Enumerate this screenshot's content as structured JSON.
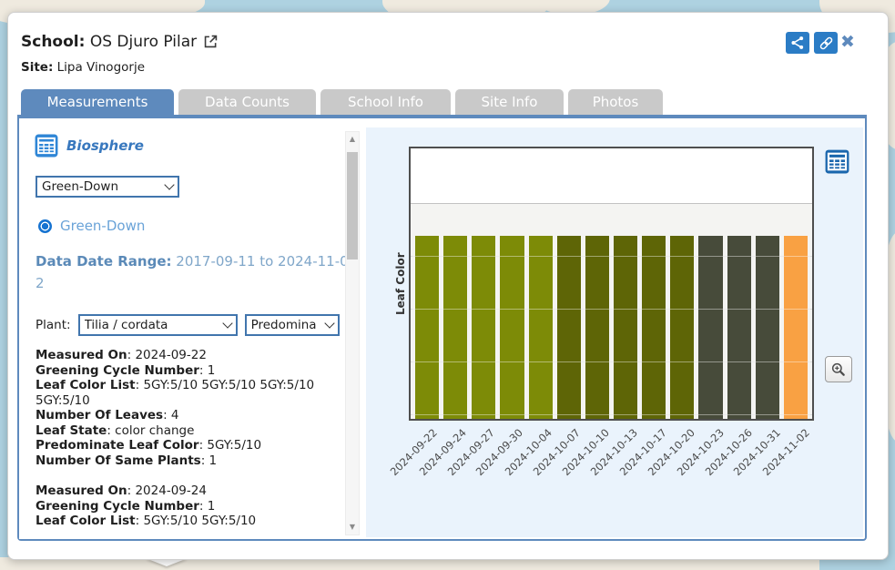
{
  "header": {
    "school_label": "School:",
    "school_name": "OS Djuro Pilar",
    "site_label": "Site:",
    "site_name": "Lipa Vinogorje"
  },
  "tabs": [
    {
      "label": "Measurements",
      "active": true
    },
    {
      "label": "Data Counts",
      "active": false
    },
    {
      "label": "School Info",
      "active": false
    },
    {
      "label": "Site Info",
      "active": false
    },
    {
      "label": "Photos",
      "active": false
    }
  ],
  "sidebar": {
    "section_title": "Biosphere",
    "protocol_select": {
      "value": "Green-Down"
    },
    "radio": {
      "label": "Green-Down",
      "selected": true
    },
    "date_range_label": "Data Date Range:",
    "date_range_value": "2017-09-11 to 2024-11-02",
    "plant_label": "Plant:",
    "plant_select": {
      "value": "Tilia / cordata"
    },
    "attribute_select": {
      "value": "Predomina"
    },
    "measurements": [
      {
        "fields": [
          {
            "label": "Measured On",
            "value": "2024-09-22"
          },
          {
            "label": "Greening Cycle Number",
            "value": "1"
          },
          {
            "label": "Leaf Color List",
            "value": "5GY:5/10 5GY:5/10 5GY:5/10 5GY:5/10"
          },
          {
            "label": "Number Of Leaves",
            "value": "4"
          },
          {
            "label": "Leaf State",
            "value": "color change"
          },
          {
            "label": "Predominate Leaf Color",
            "value": "5GY:5/10"
          },
          {
            "label": "Number Of Same Plants",
            "value": "1"
          }
        ]
      },
      {
        "fields": [
          {
            "label": "Measured On",
            "value": "2024-09-24"
          },
          {
            "label": "Greening Cycle Number",
            "value": "1"
          },
          {
            "label": "Leaf Color List",
            "value": "5GY:5/10 5GY:5/10"
          }
        ]
      }
    ]
  },
  "chart_data": {
    "type": "bar",
    "title": "",
    "xlabel": "",
    "ylabel": "Leaf Color",
    "categories": [
      "2024-09-22",
      "2024-09-24",
      "2024-09-27",
      "2024-09-30",
      "2024-10-04",
      "2024-10-07",
      "2024-10-10",
      "2024-10-13",
      "2024-10-17",
      "2024-10-20",
      "2024-10-23",
      "2024-10-26",
      "2024-10-31",
      "2024-11-02"
    ],
    "values": [
      1,
      1,
      1,
      1,
      1,
      1,
      1,
      1,
      1,
      1,
      1,
      1,
      1,
      1
    ],
    "bar_colors": [
      "#7d8b07",
      "#7d8b07",
      "#7d8b07",
      "#7d8b07",
      "#7d8b07",
      "#5e6506",
      "#5e6506",
      "#5e6506",
      "#5e6506",
      "#5e6506",
      "#474b3a",
      "#474b3a",
      "#474b3a",
      "#f9a143"
    ],
    "ylim": [
      0,
      1
    ],
    "grid": true,
    "legend": "none"
  },
  "colors": {
    "accent_blue": "#5e8abd",
    "icon_blue": "#2b7cc5",
    "biosphere_blue": "#3878be",
    "chart_table_icon_blue": "#1a66ad",
    "pane_background": "#eaf3fc",
    "map_water": "#aed2e1",
    "map_land": "#efeadf"
  }
}
